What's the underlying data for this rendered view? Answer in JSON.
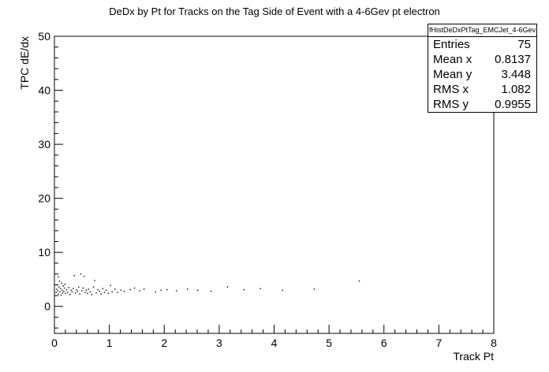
{
  "chart_data": {
    "type": "scatter",
    "title": "DeDx by Pt for Tracks on the Tag Side of Event with a 4-6Gev pt electron",
    "xlabel": "Track Pt",
    "ylabel": "TPC dE/dx",
    "xlim": [
      0,
      8
    ],
    "ylim": [
      -5,
      50
    ],
    "x_ticks": [
      "0",
      "1",
      "2",
      "3",
      "4",
      "5",
      "6",
      "7",
      "8"
    ],
    "y_ticks": [
      "0",
      "10",
      "20",
      "30",
      "40",
      "50"
    ],
    "grid": false,
    "legend": "none",
    "points": [
      {
        "x": 0.03,
        "y": 2.6
      },
      {
        "x": 0.04,
        "y": 3.2
      },
      {
        "x": 0.05,
        "y": 4.0
      },
      {
        "x": 0.06,
        "y": 2.9
      },
      {
        "x": 0.07,
        "y": 5.5
      },
      {
        "x": 0.07,
        "y": 2.3
      },
      {
        "x": 0.08,
        "y": 3.6
      },
      {
        "x": 0.09,
        "y": 4.7
      },
      {
        "x": 0.1,
        "y": 2.7
      },
      {
        "x": 0.11,
        "y": 3.3
      },
      {
        "x": 0.12,
        "y": 2.1
      },
      {
        "x": 0.13,
        "y": 4.3
      },
      {
        "x": 0.14,
        "y": 3.0
      },
      {
        "x": 0.15,
        "y": 2.5
      },
      {
        "x": 0.16,
        "y": 3.8
      },
      {
        "x": 0.17,
        "y": 2.8
      },
      {
        "x": 0.18,
        "y": 3.4
      },
      {
        "x": 0.19,
        "y": 4.1
      },
      {
        "x": 0.2,
        "y": 2.4
      },
      {
        "x": 0.22,
        "y": 3.1
      },
      {
        "x": 0.24,
        "y": 2.6
      },
      {
        "x": 0.26,
        "y": 3.5
      },
      {
        "x": 0.28,
        "y": 2.2
      },
      {
        "x": 0.3,
        "y": 3.0
      },
      {
        "x": 0.32,
        "y": 2.7
      },
      {
        "x": 0.34,
        "y": 3.3
      },
      {
        "x": 0.36,
        "y": 5.7
      },
      {
        "x": 0.38,
        "y": 2.5
      },
      {
        "x": 0.4,
        "y": 3.1
      },
      {
        "x": 0.42,
        "y": 2.8
      },
      {
        "x": 0.44,
        "y": 3.6
      },
      {
        "x": 0.46,
        "y": 2.3
      },
      {
        "x": 0.48,
        "y": 6.0
      },
      {
        "x": 0.5,
        "y": 2.9
      },
      {
        "x": 0.52,
        "y": 3.4
      },
      {
        "x": 0.54,
        "y": 5.6
      },
      {
        "x": 0.56,
        "y": 2.6
      },
      {
        "x": 0.58,
        "y": 3.0
      },
      {
        "x": 0.6,
        "y": 2.4
      },
      {
        "x": 0.62,
        "y": 3.2
      },
      {
        "x": 0.65,
        "y": 2.7
      },
      {
        "x": 0.68,
        "y": 2.2
      },
      {
        "x": 0.71,
        "y": 3.6
      },
      {
        "x": 0.73,
        "y": 4.8
      },
      {
        "x": 0.76,
        "y": 2.5
      },
      {
        "x": 0.79,
        "y": 3.1
      },
      {
        "x": 0.82,
        "y": 2.8
      },
      {
        "x": 0.85,
        "y": 2.3
      },
      {
        "x": 0.88,
        "y": 3.3
      },
      {
        "x": 0.91,
        "y": 2.6
      },
      {
        "x": 0.94,
        "y": 3.0
      },
      {
        "x": 0.98,
        "y": 2.4
      },
      {
        "x": 1.02,
        "y": 3.9
      },
      {
        "x": 1.05,
        "y": 2.7
      },
      {
        "x": 1.1,
        "y": 3.2
      },
      {
        "x": 1.15,
        "y": 2.6
      },
      {
        "x": 1.21,
        "y": 3.0
      },
      {
        "x": 1.27,
        "y": 2.8
      },
      {
        "x": 1.38,
        "y": 3.1
      },
      {
        "x": 1.46,
        "y": 3.4
      },
      {
        "x": 1.55,
        "y": 2.9
      },
      {
        "x": 1.63,
        "y": 3.2
      },
      {
        "x": 1.84,
        "y": 2.7
      },
      {
        "x": 1.94,
        "y": 3.0
      },
      {
        "x": 2.05,
        "y": 3.1
      },
      {
        "x": 2.22,
        "y": 2.9
      },
      {
        "x": 2.42,
        "y": 3.2
      },
      {
        "x": 2.61,
        "y": 3.0
      },
      {
        "x": 2.85,
        "y": 2.8
      },
      {
        "x": 3.15,
        "y": 3.6
      },
      {
        "x": 3.45,
        "y": 3.1
      },
      {
        "x": 3.75,
        "y": 3.3
      },
      {
        "x": 4.15,
        "y": 3.0
      },
      {
        "x": 4.73,
        "y": 3.2
      },
      {
        "x": 5.55,
        "y": 4.7
      }
    ]
  },
  "stats": {
    "title": "fHistDeDxPtTag_EMCJet_4-6Gev",
    "rows": [
      {
        "label": "Entries",
        "value": "75"
      },
      {
        "label": "Mean x",
        "value": "0.8137"
      },
      {
        "label": "Mean y",
        "value": "3.448"
      },
      {
        "label": "RMS x",
        "value": "1.082"
      },
      {
        "label": "RMS y",
        "value": "0.9955"
      }
    ]
  }
}
